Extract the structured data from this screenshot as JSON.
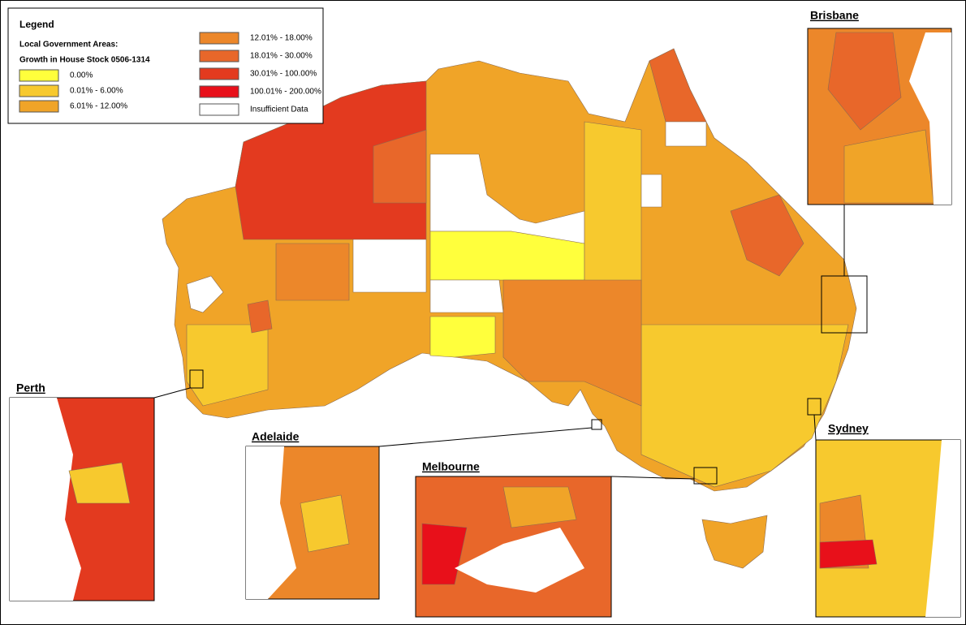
{
  "legend": {
    "title": "Legend",
    "heading": [
      "Local Government Areas:",
      "Growth in House Stock 0506-1314"
    ],
    "items": [
      {
        "label": "0.00%",
        "color": "#ffff3c"
      },
      {
        "label": "0.01% - 6.00%",
        "color": "#f7c92e"
      },
      {
        "label": "6.01% - 12.00%",
        "color": "#f0a428"
      },
      {
        "label": "12.01% - 18.00%",
        "color": "#ec872a"
      },
      {
        "label": "18.01% - 30.00%",
        "color": "#e8672a"
      },
      {
        "label": "30.01% - 100.00%",
        "color": "#e33a1f"
      },
      {
        "label": "100.01% - 200.00%",
        "color": "#e8101a"
      },
      {
        "label": "Insufficient Data",
        "color": "#ffffff"
      }
    ]
  },
  "insets": [
    "Brisbane",
    "Perth",
    "Adelaide",
    "Melbourne",
    "Sydney"
  ]
}
